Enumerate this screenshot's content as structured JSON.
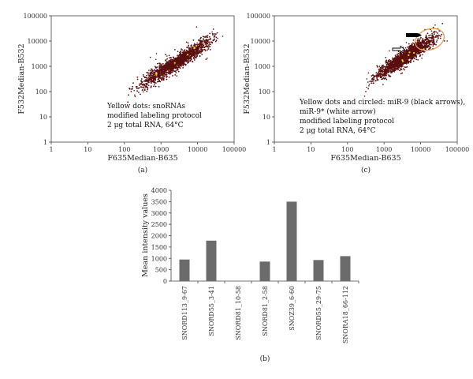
{
  "chart_data": [
    {
      "id": "panel_a",
      "type": "scatter",
      "panel_label": "(a)",
      "xlabel": "F635Median-B635",
      "ylabel": "F532Median-B532",
      "x_scale": "log",
      "y_scale": "log",
      "xlim": [
        1,
        100000
      ],
      "ylim": [
        1,
        100000
      ],
      "x_ticks": [
        "1",
        "10",
        "100",
        "1000",
        "10000",
        "100000"
      ],
      "y_ticks": [
        "1",
        "10",
        "100",
        "1000",
        "10000",
        "100000"
      ],
      "grid": false,
      "point_color": "#5a0f0f",
      "highlight_color": "#e8d200",
      "trend": {
        "x": [
          100,
          300,
          1000,
          3000,
          10000,
          30000,
          60000
        ],
        "y": [
          80,
          200,
          600,
          1600,
          4800,
          14000,
          30000
        ]
      },
      "annotation_lines": [
        "Yellow dots: snoRNAs",
        "modified labeling protocol",
        "2 μg total RNA, 64°C"
      ]
    },
    {
      "id": "panel_c",
      "type": "scatter",
      "panel_label": "(c)",
      "xlabel": "F635Median-B635",
      "ylabel": "F532Median-B532",
      "x_scale": "log",
      "y_scale": "log",
      "xlim": [
        1,
        100000
      ],
      "ylim": [
        1,
        100000
      ],
      "x_ticks": [
        "1",
        "10",
        "100",
        "1000",
        "10000",
        "100000"
      ],
      "y_ticks": [
        "1",
        "10",
        "100",
        "1000",
        "10000",
        "100000"
      ],
      "grid": false,
      "point_color": "#5a0f0f",
      "circle_color": "#e39a54",
      "trend": {
        "x": [
          250,
          600,
          1500,
          4000,
          10000,
          30000,
          60000
        ],
        "y": [
          120,
          400,
          1000,
          2500,
          6000,
          15000,
          30000
        ]
      },
      "circled_region": {
        "x": 28000,
        "y": 20000
      },
      "annotation_lines": [
        "Yellow dots and circled: miR-9 (black arrows),",
        "miR-9* (white arrow)",
        "modified labeling protocol",
        "2 μg total RNA, 64°C"
      ]
    },
    {
      "id": "panel_b",
      "type": "bar",
      "panel_label": "(b)",
      "ylabel": "Mean intensity values",
      "categories": [
        "SNORD113_9-67",
        "SNORD55_3-41",
        "SNORD81_10-58",
        "SNORD81_2-58",
        "SNOZ39_6-60",
        "SNORD55_29-75",
        "SNORA18_66-112"
      ],
      "values": [
        950,
        1780,
        0,
        860,
        3500,
        930,
        1100
      ],
      "ylim": [
        0,
        4000
      ],
      "y_ticks": [
        "0",
        "500",
        "1000",
        "1500",
        "2000",
        "2500",
        "3000",
        "3500",
        "4000"
      ],
      "bar_color": "#6b6b6b",
      "grid": false
    }
  ]
}
